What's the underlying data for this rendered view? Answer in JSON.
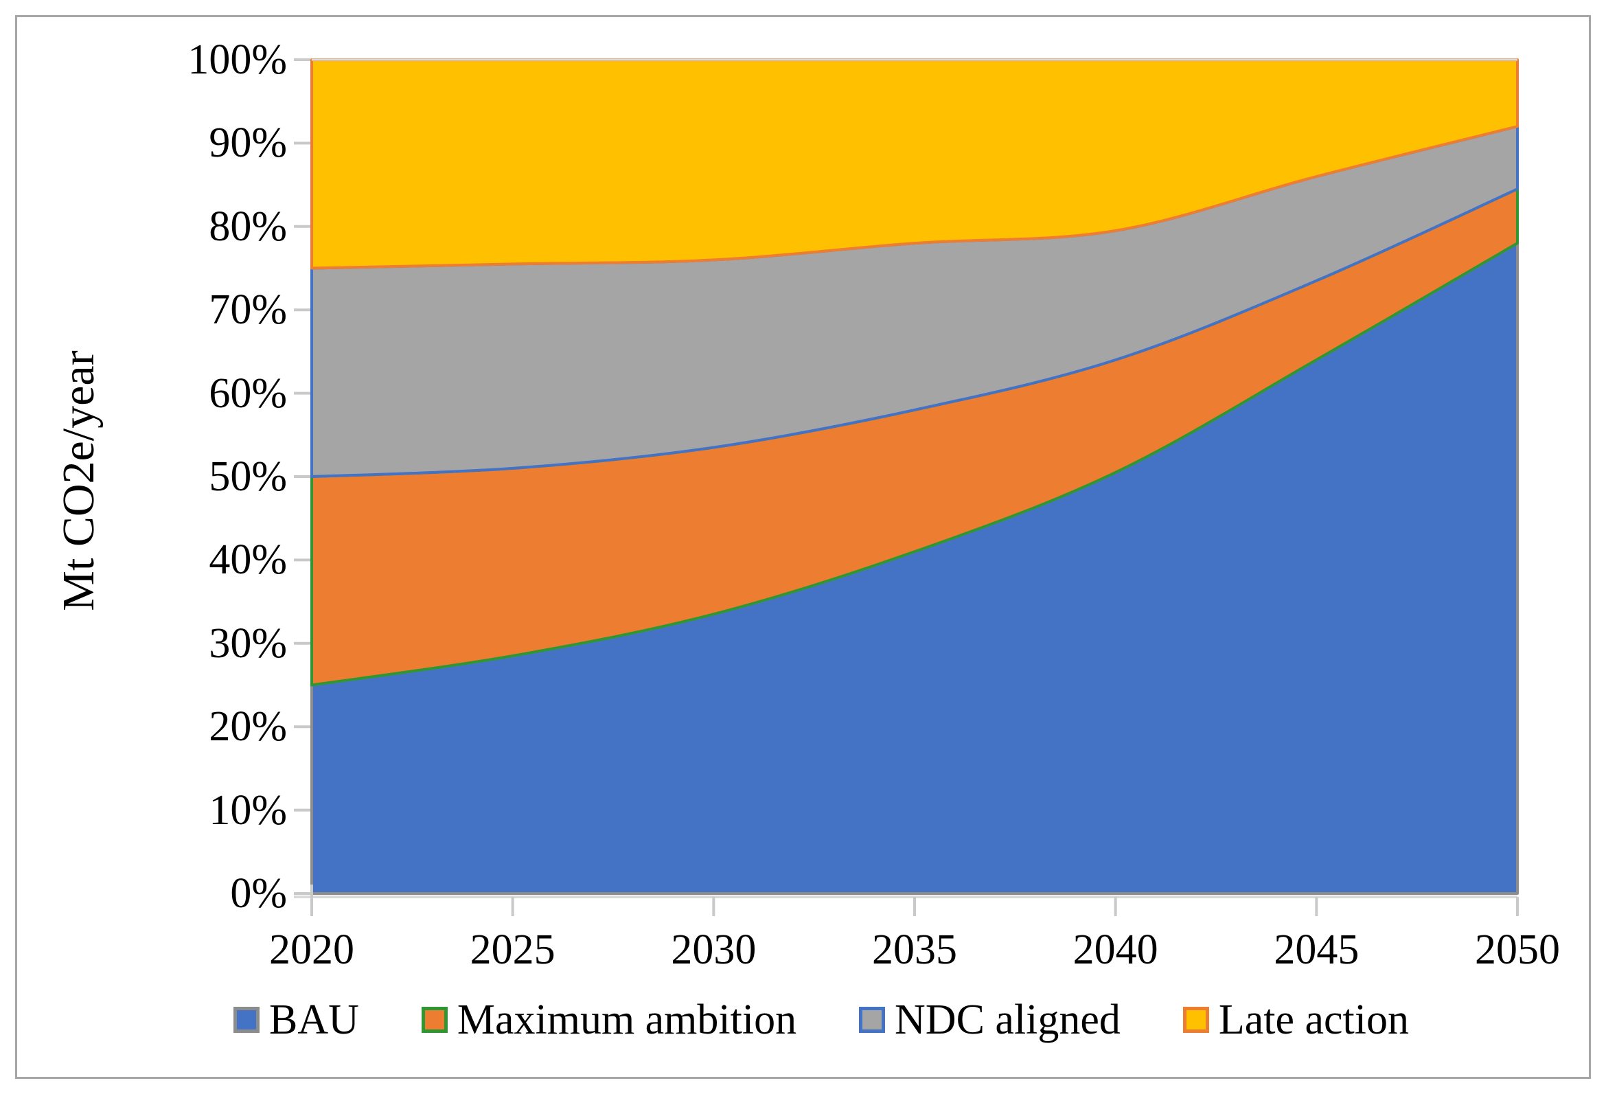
{
  "figure": {
    "background_color": "#FFFFFF",
    "frame_border_color": "#A6A6A6"
  },
  "y_axis": {
    "title": "Mt CO2e/year",
    "tick_labels": [
      "0%",
      "10%",
      "20%",
      "30%",
      "40%",
      "50%",
      "60%",
      "70%",
      "80%",
      "90%",
      "100%"
    ],
    "tick_color": "#C9C9C9",
    "axis_line_color": "#D9D9D9"
  },
  "x_axis": {
    "tick_labels": [
      "2020",
      "2025",
      "2030",
      "2035",
      "2040",
      "2045",
      "2050"
    ],
    "tick_color": "#C9C9C9",
    "axis_line_color": "#D9D9D9"
  },
  "legend": [
    {
      "label": "BAU",
      "fill": "#4472C4",
      "border": "#8C8C8C"
    },
    {
      "label": "Maximum ambition",
      "fill": "#ED7D31",
      "border": "#2E9632"
    },
    {
      "label": "NDC aligned",
      "fill": "#A5A5A5",
      "border": "#4472C4"
    },
    {
      "label": "Late action",
      "fill": "#FFC000",
      "border": "#ED7D31"
    }
  ],
  "chart_data": {
    "type": "area",
    "stacking": "percent",
    "title": "",
    "xlabel": "",
    "ylabel": "Mt CO2e/year",
    "x": [
      2020,
      2025,
      2030,
      2035,
      2040,
      2045,
      2050
    ],
    "ylim": [
      0,
      100
    ],
    "y_tick_step": 10,
    "grid": false,
    "legend_position": "bottom",
    "series": [
      {
        "name": "BAU",
        "fill": "#4472C4",
        "border": "#8C8C8C",
        "share_pct": [
          25,
          28.5,
          33.5,
          41,
          50.5,
          64,
          78
        ],
        "cumulative_top_pct": [
          25,
          28.5,
          33.5,
          41,
          50.5,
          64,
          78
        ]
      },
      {
        "name": "Maximum ambition",
        "fill": "#ED7D31",
        "border": "#2E9632",
        "share_pct": [
          25,
          22.5,
          20,
          17,
          13.5,
          9.5,
          6.5
        ],
        "cumulative_top_pct": [
          50,
          51,
          53.5,
          58,
          64,
          73.5,
          84.5
        ]
      },
      {
        "name": "NDC aligned",
        "fill": "#A5A5A5",
        "border": "#4472C4",
        "share_pct": [
          25,
          24.5,
          22.5,
          20,
          15.5,
          12.5,
          7.5
        ],
        "cumulative_top_pct": [
          75,
          75.5,
          76,
          78,
          79.5,
          86,
          92
        ]
      },
      {
        "name": "Late action",
        "fill": "#FFC000",
        "border": "#ED7D31",
        "share_pct": [
          25,
          24.5,
          24,
          22,
          20.5,
          14,
          8
        ],
        "cumulative_top_pct": [
          100,
          100,
          100,
          100,
          100,
          100,
          100
        ]
      }
    ]
  }
}
